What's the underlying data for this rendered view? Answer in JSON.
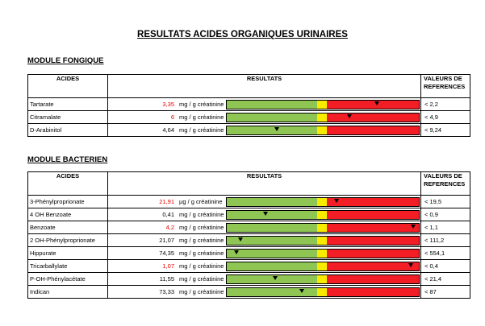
{
  "title": "RESULTATS ACIDES ORGANIQUES URINAIRES",
  "headers": {
    "acides": "ACIDES",
    "resultats": "RESULTATS",
    "references_l1": "VALEURS DE",
    "references_l2": "REFERENCES"
  },
  "colors": {
    "green": "#8fc653",
    "yellow": "#f7ec00",
    "red": "#f21d25",
    "abnormal_text": "#e60000"
  },
  "modules": [
    {
      "title": "MODULE FONGIQUE",
      "rows": [
        {
          "name": "Tartarate",
          "value": "3,35",
          "abnormal": true,
          "unit": "mg / g créatinine",
          "marker": 0.78,
          "ref": "<  2,2"
        },
        {
          "name": "Citramalate",
          "value": "6",
          "abnormal": true,
          "unit": "mg / g créatinine",
          "marker": 0.64,
          "ref": "<  4,9"
        },
        {
          "name": "D-Arabinitol",
          "value": "4,64",
          "abnormal": false,
          "unit": "mg / g créatinine",
          "marker": 0.26,
          "ref": "<  9,24"
        }
      ]
    },
    {
      "title": "MODULE BACTERIEN",
      "rows": [
        {
          "name": "3-Phénylproprionate",
          "value": "21,91",
          "abnormal": true,
          "unit": "µg / g créatinine",
          "marker": 0.57,
          "ref": "<  19,5"
        },
        {
          "name": "4 OH Benzoate",
          "value": "0,41",
          "abnormal": false,
          "unit": "mg / g créatinine",
          "marker": 0.2,
          "ref": "<  0,9"
        },
        {
          "name": "Benzoate",
          "value": "4,2",
          "abnormal": true,
          "unit": "mg / g créatinine",
          "marker": 0.97,
          "ref": "<  1,1"
        },
        {
          "name": "2 OH-Phénylproprionate",
          "value": "21,07",
          "abnormal": false,
          "unit": "mg / g créatinine",
          "marker": 0.07,
          "ref": "<  111,2"
        },
        {
          "name": "Hippurate",
          "value": "74,35",
          "abnormal": false,
          "unit": "mg / g créatinine",
          "marker": 0.05,
          "ref": "<  554,1"
        },
        {
          "name": "Tricarballylate",
          "value": "1,07",
          "abnormal": true,
          "unit": "mg / g créatinine",
          "marker": 0.96,
          "ref": "<  0,4"
        },
        {
          "name": "P-OH-Phénylacétate",
          "value": "11,55",
          "abnormal": false,
          "unit": "mg / g créatinine",
          "marker": 0.25,
          "ref": "<  21,4"
        },
        {
          "name": "Indican",
          "value": "73,33",
          "abnormal": false,
          "unit": "mg / g créatinine",
          "marker": 0.39,
          "ref": "<  87"
        }
      ]
    }
  ]
}
